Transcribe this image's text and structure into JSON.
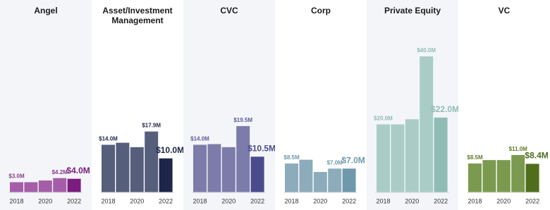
{
  "chart_data": [
    {
      "type": "bar",
      "title": "Angel",
      "categories": [
        "2018",
        null,
        "2020",
        null,
        "2022"
      ],
      "values": [
        3.0,
        3.0,
        3.5,
        4.2,
        4.0
      ],
      "value_labels": [
        "$3.0M",
        null,
        null,
        "$4.2M",
        "$4.0M"
      ],
      "colors": [
        "#a45ea8",
        "#a45ea8",
        "#a45ea8",
        "#a45ea8",
        "#7b1c7e"
      ],
      "label_color": "#8e3b8f",
      "ylim": [
        0,
        40
      ]
    },
    {
      "type": "bar",
      "title": "Asset/Investment Management",
      "categories": [
        "2018",
        null,
        "2020",
        null,
        "2022"
      ],
      "values": [
        14.0,
        14.6,
        13.3,
        17.9,
        10.0
      ],
      "value_labels": [
        "$14.0M",
        null,
        null,
        "$17.9M",
        "$10.0M"
      ],
      "colors": [
        "#555f7b",
        "#555f7b",
        "#555f7b",
        "#555f7b",
        "#1d2548"
      ],
      "label_color": "#1f2a4a",
      "ylim": [
        0,
        40
      ]
    },
    {
      "type": "bar",
      "title": "CVC",
      "categories": [
        "2018",
        null,
        "2020",
        null,
        "2022"
      ],
      "values": [
        14.0,
        14.2,
        13.3,
        19.5,
        10.5
      ],
      "value_labels": [
        "$14.0M",
        null,
        null,
        "$19.5M",
        "$10.5M"
      ],
      "colors": [
        "#7c7cab",
        "#7c7cab",
        "#7c7cab",
        "#7c7cab",
        "#4b4b8c"
      ],
      "label_color": "#5b5b98",
      "ylim": [
        0,
        40
      ]
    },
    {
      "type": "bar",
      "title": "Corp",
      "categories": [
        "2018",
        null,
        "2020",
        null,
        "2022"
      ],
      "values": [
        8.5,
        9.6,
        6.0,
        7.0,
        7.0
      ],
      "value_labels": [
        "$8.5M",
        null,
        null,
        "$7.0M",
        "$7.0M"
      ],
      "colors": [
        "#8cacbb",
        "#8cacbb",
        "#8cacbb",
        "#8cacbb",
        "#6f99aa"
      ],
      "label_color": "#6f99aa",
      "ylim": [
        0,
        40
      ]
    },
    {
      "type": "bar",
      "title": "Private Equity",
      "categories": [
        "2018",
        null,
        "2020",
        null,
        "2022"
      ],
      "values": [
        20.0,
        20.0,
        21.5,
        40.0,
        22.0
      ],
      "value_labels": [
        "$20.0M",
        null,
        null,
        "$40.0M",
        "$22.0M"
      ],
      "colors": [
        "#a9cdc6",
        "#a9cdc6",
        "#a9cdc6",
        "#a9cdc6",
        "#8fbdb5"
      ],
      "label_color": "#8fbdb5",
      "ylim": [
        0,
        40
      ]
    },
    {
      "type": "bar",
      "title": "VC",
      "categories": [
        "2018",
        null,
        "2020",
        null,
        "2022"
      ],
      "values": [
        8.5,
        9.5,
        9.5,
        11.0,
        8.4
      ],
      "value_labels": [
        "$8.5M",
        null,
        null,
        "$11.0M",
        "$8.4M"
      ],
      "colors": [
        "#7b9a4f",
        "#7b9a4f",
        "#7b9a4f",
        "#7b9a4f",
        "#4e6e1c"
      ],
      "label_color": "#5d7d28",
      "ylim": [
        0,
        40
      ]
    }
  ]
}
